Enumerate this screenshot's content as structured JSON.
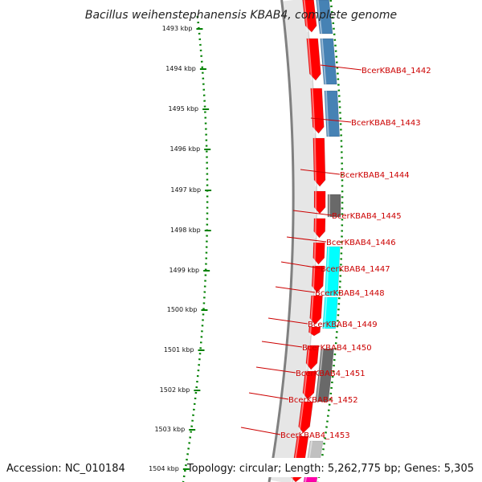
{
  "title": "Bacillus weihenstephanensis KBAB4, complete genome",
  "footer": {
    "accession": "Accession: NC_010184",
    "summary": "Topology: circular; Length: 5,262,775 bp; Genes: 5,305"
  },
  "ruler": {
    "ticks": [
      "1493 kbp",
      "1494 kbp",
      "1495 kbp",
      "1496 kbp",
      "1497 kbp",
      "1498 kbp",
      "1499 kbp",
      "1500 kbp",
      "1501 kbp",
      "1502 kbp",
      "1503 kbp",
      "1504 kbp"
    ]
  },
  "colors": {
    "forward": "#ff0000",
    "reverse_blue": "#4682b4",
    "reverse_cyan": "#00ffff",
    "reverse_gray": "#696969",
    "reverse_light": "#c0c0c0",
    "magenta": "#ff00aa",
    "ruler": "#008000",
    "backbone": "#808080",
    "label": "#cc0000"
  },
  "gene_labels": [
    "BcerKBAB4_1442",
    "BcerKBAB4_1443",
    "BcerKBAB4_1444",
    "BcerKBAB4_1445",
    "BcerKBAB4_1446",
    "BcerKBAB4_1447",
    "BcerKBAB4_1448",
    "BcerKBAB4_1449",
    "BcerKBAB4_1450",
    "BcerKBAB4_1451",
    "BcerKBAB4_1452",
    "BcerKBAB4_1453"
  ]
}
